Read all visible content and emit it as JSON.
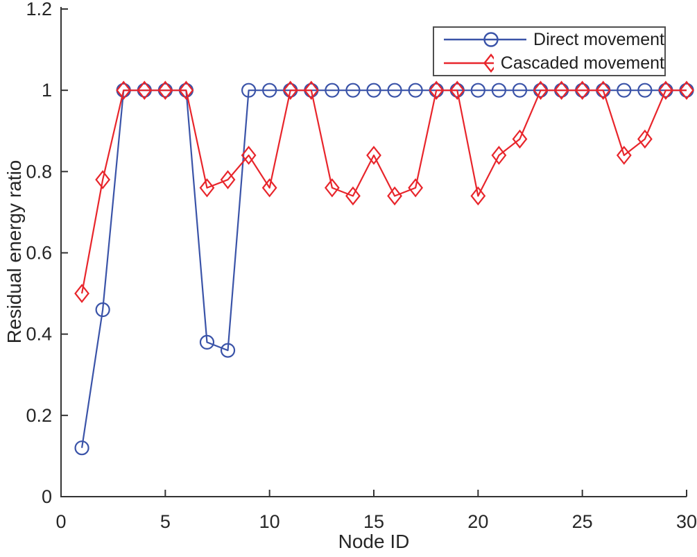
{
  "chart_data": {
    "type": "line",
    "title": "",
    "xlabel": "Node ID",
    "ylabel": "Residual energy ratio",
    "xlim": [
      0,
      30
    ],
    "ylim": [
      0,
      1.2
    ],
    "x_ticks": [
      0,
      5,
      10,
      15,
      20,
      25,
      30
    ],
    "x_tick_labels": [
      "0",
      "5",
      "10",
      "15",
      "20",
      "25",
      "30"
    ],
    "y_ticks": [
      0,
      0.2,
      0.4,
      0.6,
      0.8,
      1,
      1.2
    ],
    "y_tick_labels": [
      "0",
      "0.2",
      "0.4",
      "0.6",
      "0.8",
      "1",
      "1.2"
    ],
    "grid": false,
    "legend_position": "top-right-inside",
    "x": [
      1,
      2,
      3,
      4,
      5,
      6,
      7,
      8,
      9,
      10,
      11,
      12,
      13,
      14,
      15,
      16,
      17,
      18,
      19,
      20,
      21,
      22,
      23,
      24,
      25,
      26,
      27,
      28,
      29,
      30
    ],
    "series": [
      {
        "name": "Direct movement",
        "marker": "circle",
        "color": "#3a53a8",
        "values": [
          0.12,
          0.46,
          1,
          1,
          1,
          1,
          0.38,
          0.36,
          1,
          1,
          1,
          1,
          1,
          1,
          1,
          1,
          1,
          1,
          1,
          1,
          1,
          1,
          1,
          1,
          1,
          1,
          1,
          1,
          1,
          1
        ]
      },
      {
        "name": "Cascaded movement",
        "marker": "diamond",
        "color": "#e8252b",
        "values": [
          0.5,
          0.78,
          1,
          1,
          1,
          1,
          0.76,
          0.78,
          0.84,
          0.76,
          1,
          1,
          0.76,
          0.74,
          0.84,
          0.74,
          0.76,
          1,
          1,
          0.74,
          0.84,
          0.88,
          1,
          1,
          1,
          1,
          0.84,
          0.88,
          1,
          1
        ]
      }
    ],
    "axis_color": "#333333",
    "text_color": "#262626"
  }
}
